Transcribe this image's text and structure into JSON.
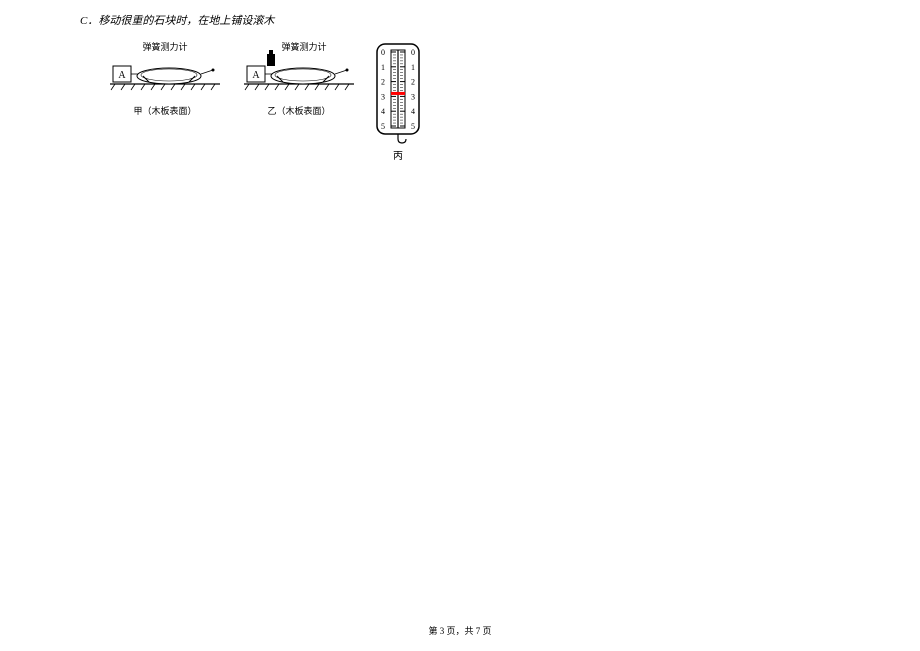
{
  "option": {
    "letter": "C",
    "text": "．移动很重的石块时，在地上铺设滚木"
  },
  "figures": {
    "setup1": {
      "block_label": "A",
      "meter_label": "弹簧测力计",
      "caption": "甲（木板表面）"
    },
    "setup2": {
      "block_label": "A",
      "meter_label": "弹簧测力计",
      "caption": "乙（木板表面）"
    },
    "gauge": {
      "scale_max": 5,
      "scale_min": 0,
      "left_numbers": [
        "0",
        "1",
        "2",
        "3",
        "4",
        "5"
      ],
      "right_numbers": [
        "0",
        "1",
        "2",
        "3",
        "4",
        "5"
      ],
      "pointer_value": 2.8,
      "body_color": "#ffffff",
      "scale_color": "#000000",
      "pointer_color": "#ff0000",
      "caption": "丙"
    }
  },
  "footer": {
    "text": "第 3 页，共 7 页"
  }
}
